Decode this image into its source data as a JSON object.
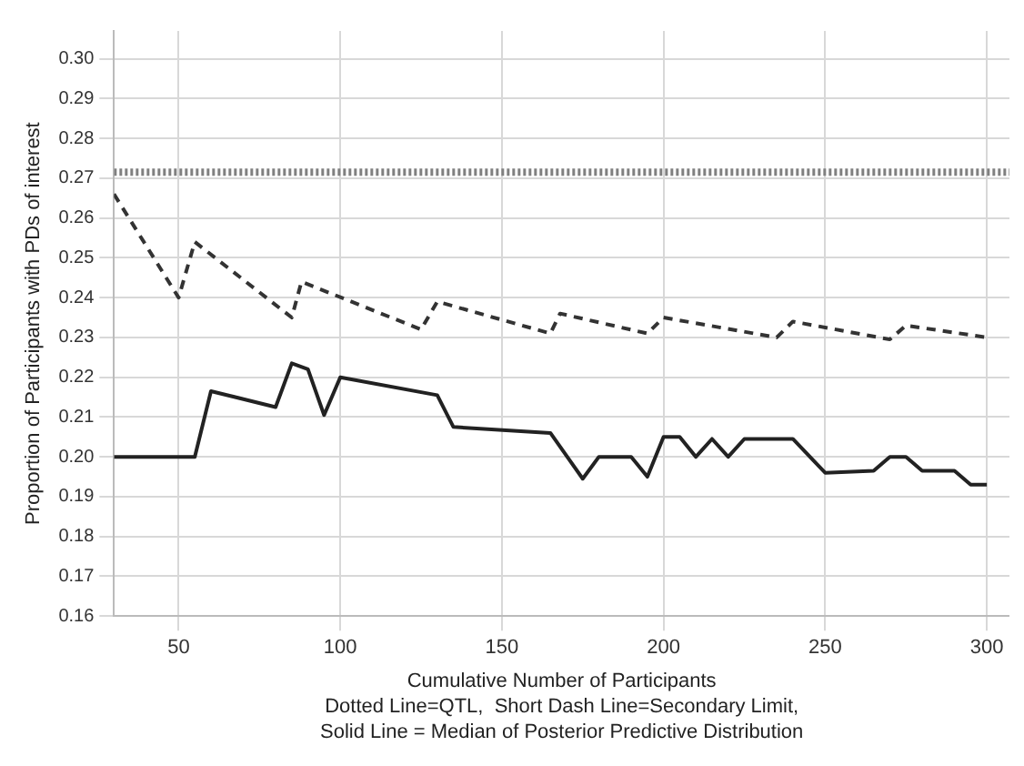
{
  "chart_data": {
    "type": "line",
    "xlabel": "Cumulative Number of Participants",
    "ylabel": "Proportion of Participants with PDs of interest",
    "annotations": [
      "Dotted Line=QTL,  Short Dash Line=Secondary Limit,",
      "Solid Line = Median of Posterior Predictive Distribution"
    ],
    "xlim": [
      30,
      307
    ],
    "xticks": [
      50,
      100,
      150,
      200,
      250,
      300
    ],
    "ylim": [
      0.16,
      0.307
    ],
    "yticks": [
      {
        "value": 0.16,
        "label": "0.16"
      },
      {
        "value": 0.17,
        "label": "0.17"
      },
      {
        "value": 0.18,
        "label": "0.18"
      },
      {
        "value": 0.19,
        "label": "0.19"
      },
      {
        "value": 0.2,
        "label": "0.20"
      },
      {
        "value": 0.21,
        "label": "0.21"
      },
      {
        "value": 0.22,
        "label": "0.22"
      },
      {
        "value": 0.23,
        "label": "0.23"
      },
      {
        "value": 0.24,
        "label": "0.24"
      },
      {
        "value": 0.25,
        "label": "0.25"
      },
      {
        "value": 0.26,
        "label": "0.26"
      },
      {
        "value": 0.27,
        "label": "0.27"
      },
      {
        "value": 0.28,
        "label": "0.28"
      },
      {
        "value": 0.29,
        "label": "0.29"
      },
      {
        "value": 0.3,
        "label": "0.30"
      }
    ],
    "grid": true,
    "marker": "none",
    "series": [
      {
        "color": "#808080",
        "line_style": "dotted",
        "x": [
          30,
          307
        ],
        "values": [
          0.2715,
          0.2715
        ]
      },
      {
        "color": "#333333",
        "line_style": "dashed",
        "x": [
          30,
          50,
          55,
          85,
          88,
          125,
          130,
          165,
          168,
          195,
          200,
          235,
          240,
          270,
          275,
          300
        ],
        "values": [
          0.266,
          0.24,
          0.254,
          0.235,
          0.244,
          0.232,
          0.239,
          0.231,
          0.236,
          0.231,
          0.235,
          0.23,
          0.234,
          0.2295,
          0.233,
          0.23
        ]
      },
      {
        "color": "#222222",
        "line_style": "solid",
        "x": [
          30,
          55,
          60,
          80,
          85,
          90,
          95,
          100,
          130,
          135,
          165,
          175,
          180,
          190,
          195,
          200,
          205,
          210,
          215,
          220,
          225,
          240,
          250,
          265,
          270,
          275,
          280,
          290,
          295,
          300
        ],
        "values": [
          0.2,
          0.2,
          0.2165,
          0.2125,
          0.2235,
          0.222,
          0.2105,
          0.22,
          0.2155,
          0.2075,
          0.206,
          0.1945,
          0.2,
          0.2,
          0.195,
          0.205,
          0.205,
          0.2,
          0.2045,
          0.2,
          0.2045,
          0.2045,
          0.196,
          0.1965,
          0.2,
          0.2,
          0.1965,
          0.1965,
          0.193,
          0.193
        ]
      }
    ]
  }
}
